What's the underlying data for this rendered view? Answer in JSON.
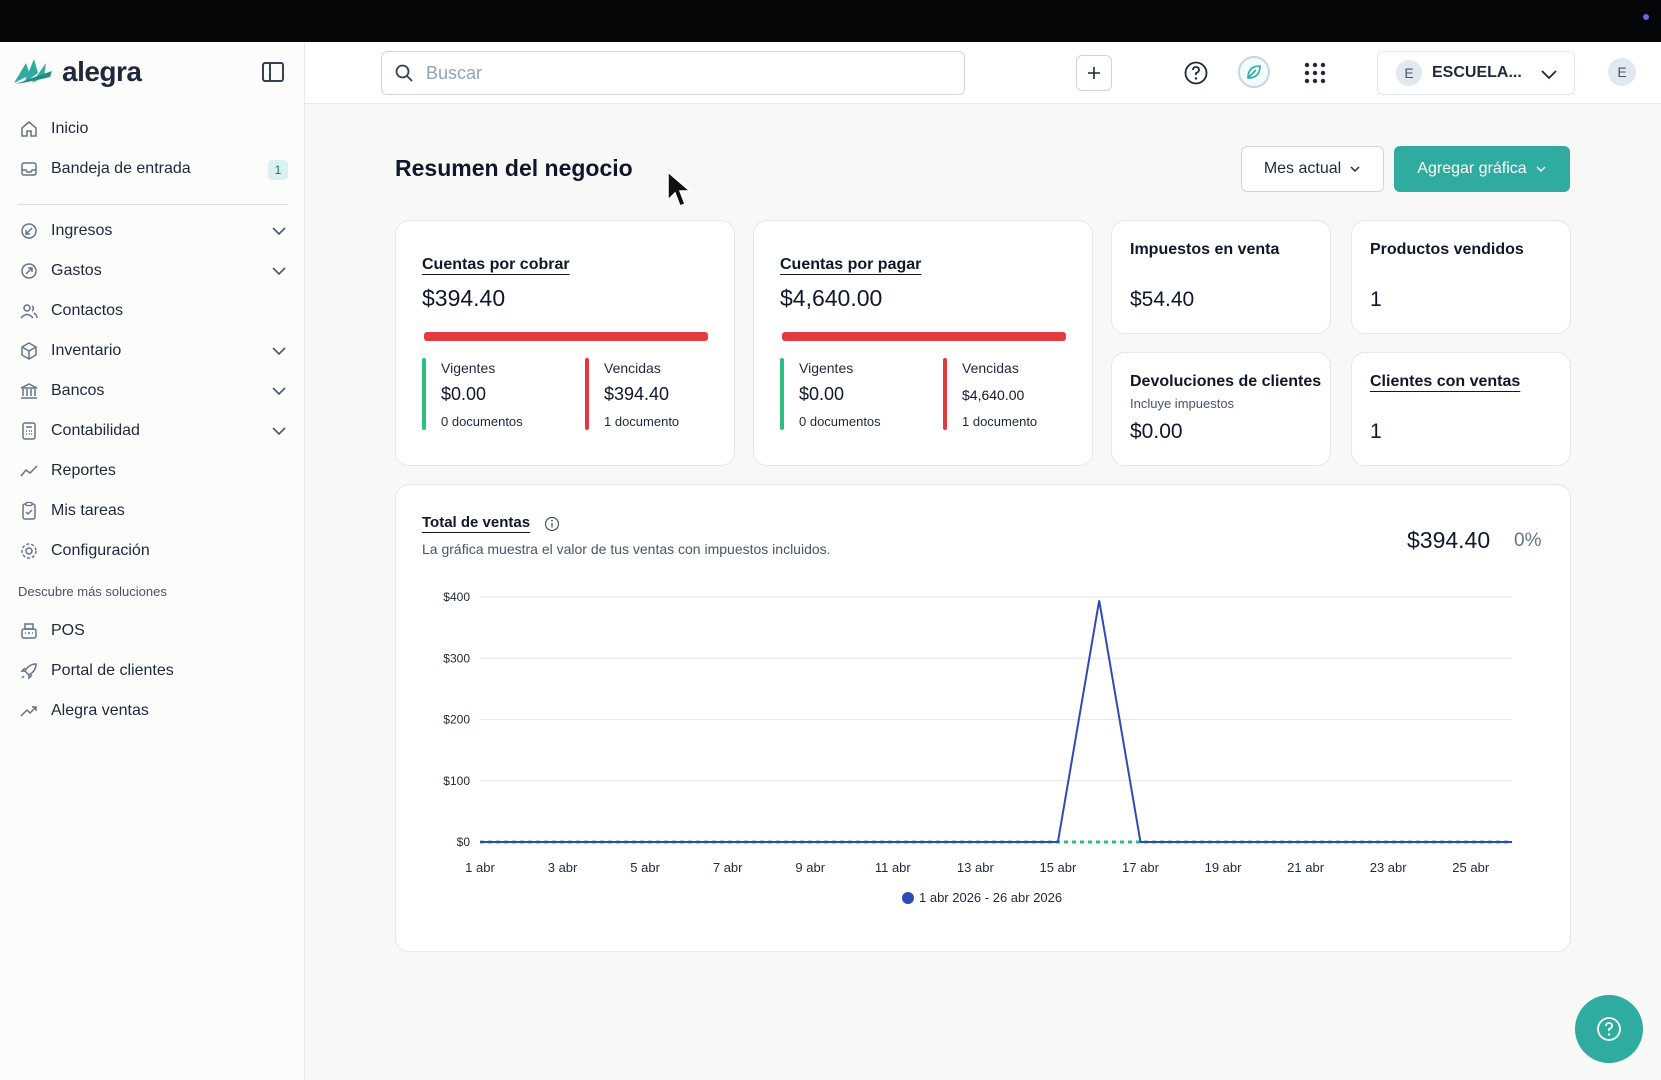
{
  "app": {
    "logo_text": "alegra"
  },
  "sidebar": {
    "items": [
      {
        "label": "Inicio",
        "icon": "home-icon"
      },
      {
        "label": "Bandeja de entrada",
        "icon": "inbox-icon",
        "badge": "1"
      },
      {
        "label": "Ingresos",
        "icon": "income-icon",
        "expandable": true
      },
      {
        "label": "Gastos",
        "icon": "expenses-icon",
        "expandable": true
      },
      {
        "label": "Contactos",
        "icon": "contacts-icon"
      },
      {
        "label": "Inventario",
        "icon": "box-icon",
        "expandable": true
      },
      {
        "label": "Bancos",
        "icon": "bank-icon",
        "expandable": true
      },
      {
        "label": "Contabilidad",
        "icon": "calculator-icon",
        "expandable": true
      },
      {
        "label": "Reportes",
        "icon": "chart-line-icon"
      },
      {
        "label": "Mis tareas",
        "icon": "clipboard-icon"
      },
      {
        "label": "Configuración",
        "icon": "gear-icon"
      }
    ],
    "section_label": "Descubre más soluciones",
    "extra_items": [
      {
        "label": "POS",
        "icon": "pos-icon"
      },
      {
        "label": "Portal de clientes",
        "icon": "rocket-icon"
      },
      {
        "label": "Alegra ventas",
        "icon": "trend-icon"
      }
    ]
  },
  "header": {
    "search_placeholder": "Buscar",
    "company_initial": "E",
    "company_name": "ESCUELA...",
    "user_initial": "E"
  },
  "main": {
    "title": "Resumen del negocio",
    "period_label": "Mes actual",
    "add_chart_label": "Agregar gráfica"
  },
  "cards": {
    "receivable": {
      "title": "Cuentas por cobrar",
      "amount": "$394.40",
      "current_label": "Vigentes",
      "current_amount": "$0.00",
      "current_docs": "0 documentos",
      "overdue_label": "Vencidas",
      "overdue_amount": "$394.40",
      "overdue_docs": "1 documento"
    },
    "payable": {
      "title": "Cuentas por pagar",
      "amount": "$4,640.00",
      "current_label": "Vigentes",
      "current_amount": "$0.00",
      "current_docs": "0 documentos",
      "overdue_label": "Vencidas",
      "overdue_amount": "$4,640.00",
      "overdue_docs": "1 documento"
    },
    "taxes": {
      "title": "Impuestos en venta",
      "value": "$54.40"
    },
    "products": {
      "title": "Productos vendidos",
      "value": "1"
    },
    "returns": {
      "title": "Devoluciones de clientes",
      "note": "Incluye impuestos",
      "value": "$0.00"
    },
    "clients": {
      "title": "Clientes con ventas",
      "value": "1"
    }
  },
  "sales_chart": {
    "title": "Total de ventas",
    "description": "La gráfica muestra el valor de tus ventas con impuestos incluidos.",
    "total": "$394.40",
    "change": "0%"
  },
  "colors": {
    "accent": "#30aba0",
    "overdue": "#e33a3f",
    "current": "#2ebf7e",
    "series": "#2f49b8"
  },
  "chart_data": {
    "type": "line",
    "x": [
      "1 abr",
      "2 abr",
      "3 abr",
      "4 abr",
      "5 abr",
      "6 abr",
      "7 abr",
      "8 abr",
      "9 abr",
      "10 abr",
      "11 abr",
      "12 abr",
      "13 abr",
      "14 abr",
      "15 abr",
      "16 abr",
      "17 abr",
      "18 abr",
      "19 abr",
      "20 abr",
      "21 abr",
      "22 abr",
      "23 abr",
      "24 abr",
      "25 abr",
      "26 abr"
    ],
    "tick_labels": [
      "1 abr",
      "3 abr",
      "5 abr",
      "7 abr",
      "9 abr",
      "11 abr",
      "13 abr",
      "15 abr",
      "17 abr",
      "19 abr",
      "21 abr",
      "23 abr",
      "25 abr"
    ],
    "y_tick_labels": [
      "$0",
      "$100",
      "$200",
      "$300",
      "$400"
    ],
    "ylim": [
      0,
      400
    ],
    "series": [
      {
        "name": "1 abr 2026 - 26 abr 2026",
        "values": [
          0,
          0,
          0,
          0,
          0,
          0,
          0,
          0,
          0,
          0,
          0,
          0,
          0,
          0,
          0,
          394.4,
          0,
          0,
          0,
          0,
          0,
          0,
          0,
          0,
          0,
          0
        ]
      }
    ],
    "comparison_series_values": [
      0,
      0,
      0,
      0,
      0,
      0,
      0,
      0,
      0,
      0,
      0,
      0,
      0,
      0,
      0,
      0,
      0,
      0,
      0,
      0,
      0,
      0,
      0,
      0,
      0,
      0
    ],
    "grid": true,
    "legend_position": "bottom"
  }
}
